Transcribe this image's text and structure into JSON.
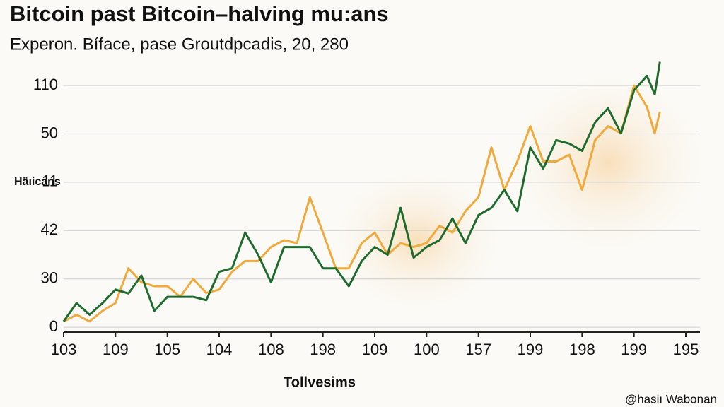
{
  "chart_data": {
    "type": "line",
    "title": "Bitcoin past Bitcoin–halving mu:ans",
    "subtitle": "Experon. Bíface, pase Groutdpcadis, 20, 280",
    "ylabel": "Häıicans",
    "xlabel": "Tollvesims",
    "footer": "@hasiı Wabonan",
    "xlim": [
      0,
      12
    ],
    "ylim": [
      -0.1,
      5.6
    ],
    "grid": true,
    "yticks": [
      {
        "value": 0,
        "label": "0"
      },
      {
        "value": 1,
        "label": "30"
      },
      {
        "value": 2,
        "label": "42"
      },
      {
        "value": 3,
        "label": "11"
      },
      {
        "value": 4,
        "label": "50"
      },
      {
        "value": 5,
        "label": "110"
      }
    ],
    "xticks": [
      {
        "value": 0,
        "label": "103"
      },
      {
        "value": 1,
        "label": "109"
      },
      {
        "value": 2,
        "label": "105"
      },
      {
        "value": 3,
        "label": "104"
      },
      {
        "value": 4,
        "label": "108"
      },
      {
        "value": 5,
        "label": "198"
      },
      {
        "value": 6,
        "label": "109"
      },
      {
        "value": 7,
        "label": "100"
      },
      {
        "value": 8,
        "label": "157"
      },
      {
        "value": 9,
        "label": "199"
      },
      {
        "value": 10,
        "label": "198"
      },
      {
        "value": 11,
        "label": "199"
      },
      {
        "value": 12,
        "label": "195"
      }
    ],
    "x": [
      0,
      0.25,
      0.5,
      0.75,
      1,
      1.25,
      1.5,
      1.75,
      2,
      2.25,
      2.5,
      2.75,
      3,
      3.25,
      3.5,
      3.75,
      4,
      4.25,
      4.5,
      4.75,
      5,
      5.25,
      5.5,
      5.75,
      6,
      6.25,
      6.5,
      6.75,
      7,
      7.25,
      7.5,
      7.75,
      8,
      8.25,
      8.5,
      8.75,
      9,
      9.25,
      9.5,
      9.75,
      10,
      10.25,
      10.5,
      10.75,
      11,
      11.25,
      11.4,
      11.5
    ],
    "series": [
      {
        "color": "#1f6b2e",
        "values": [
          0.12,
          0.5,
          0.26,
          0.5,
          0.78,
          0.7,
          1.07,
          0.34,
          0.63,
          0.63,
          0.63,
          0.56,
          1.15,
          1.22,
          1.96,
          1.5,
          0.93,
          1.66,
          1.66,
          1.66,
          1.22,
          1.22,
          0.85,
          1.37,
          1.66,
          1.5,
          2.47,
          1.44,
          1.66,
          1.8,
          2.25,
          1.74,
          2.32,
          2.47,
          2.84,
          2.4,
          3.72,
          3.28,
          3.87,
          3.8,
          3.65,
          4.24,
          4.53,
          4.01,
          4.9,
          5.2,
          4.82,
          5.49
        ]
      },
      {
        "color": "#f0a93a",
        "values": [
          0.12,
          0.26,
          0.12,
          0.34,
          0.5,
          1.22,
          0.93,
          0.85,
          0.85,
          0.63,
          1.0,
          0.71,
          0.78,
          1.15,
          1.37,
          1.37,
          1.66,
          1.8,
          1.74,
          2.69,
          1.96,
          1.22,
          1.22,
          1.74,
          1.96,
          1.5,
          1.74,
          1.66,
          1.74,
          2.1,
          1.96,
          2.4,
          2.69,
          3.72,
          2.84,
          3.43,
          4.16,
          3.43,
          3.43,
          3.57,
          2.84,
          3.87,
          4.16,
          4.01,
          5.0,
          4.56,
          4.01,
          4.46
        ]
      }
    ]
  }
}
